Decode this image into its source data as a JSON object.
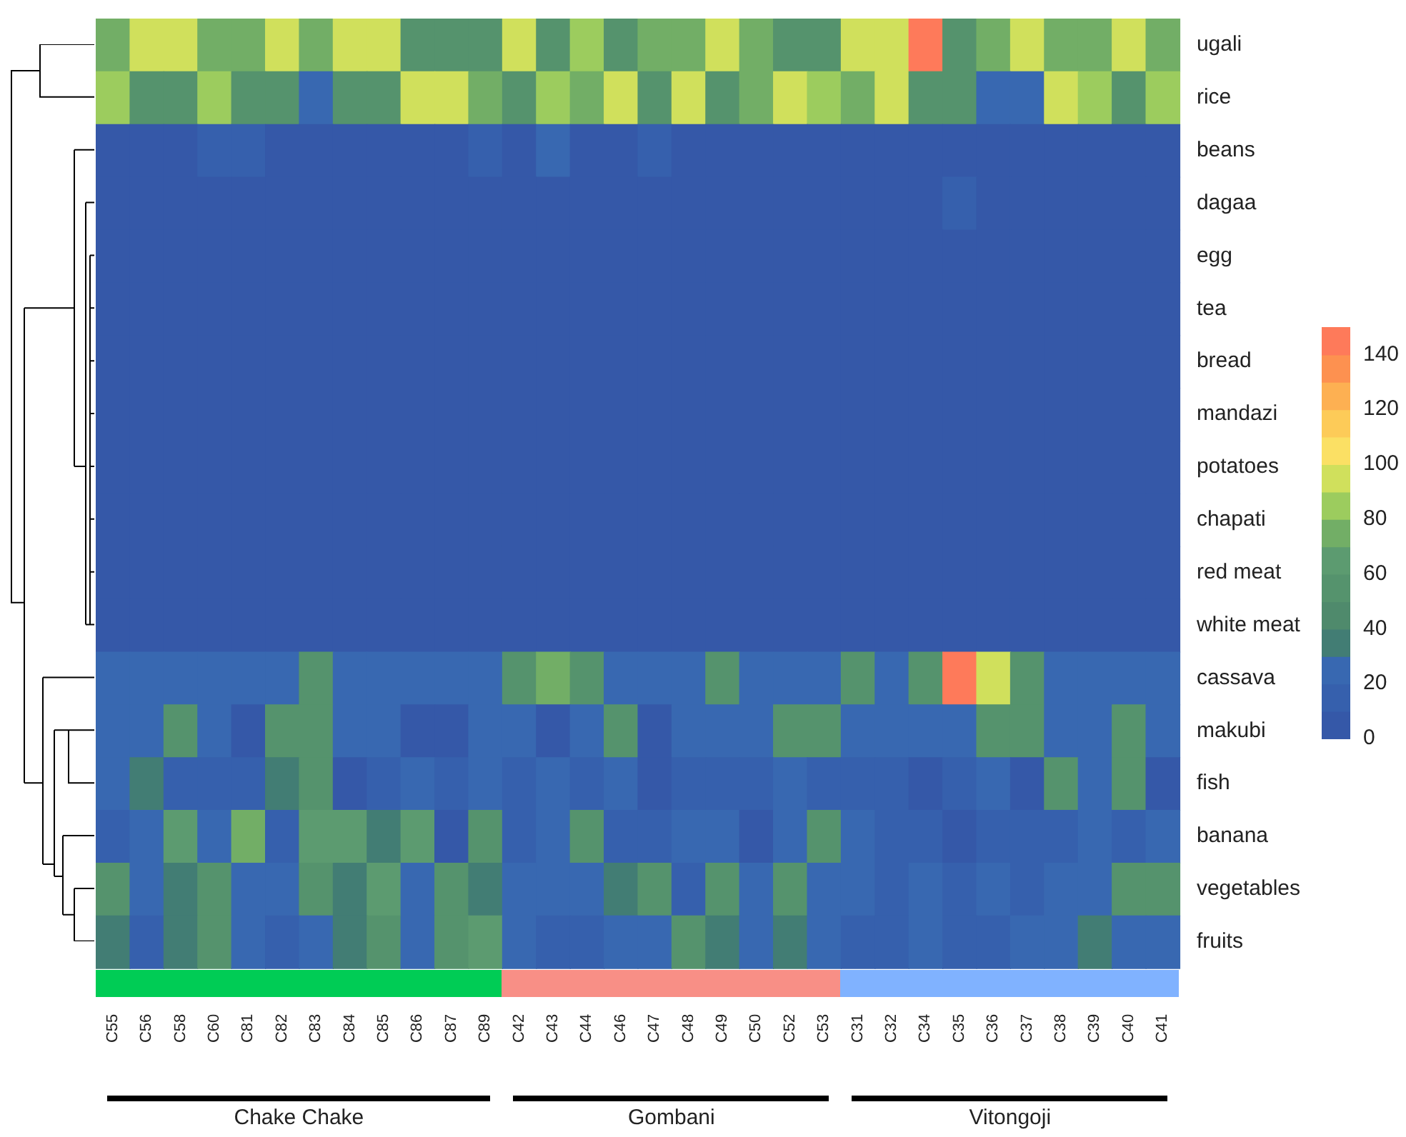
{
  "chart_data": {
    "type": "heatmap",
    "categories": [
      "C55",
      "C56",
      "C58",
      "C60",
      "C81",
      "C82",
      "C83",
      "C84",
      "C85",
      "C86",
      "C87",
      "C89",
      "C42",
      "C43",
      "C44",
      "C46",
      "C47",
      "C48",
      "C49",
      "C50",
      "C52",
      "C53",
      "C31",
      "C32",
      "C34",
      "C35",
      "C36",
      "C37",
      "C38",
      "C39",
      "C40",
      "C41"
    ],
    "y_categories": [
      "ugali",
      "rice",
      "beans",
      "dagaa",
      "egg",
      "tea",
      "bread",
      "mandazi",
      "potatoes",
      "chapati",
      "red meat",
      "white meat",
      "cassava",
      "makubi",
      "fish",
      "banana",
      "vegetables",
      "fruits"
    ],
    "cells": [
      [
        75,
        95,
        95,
        75,
        75,
        95,
        75,
        95,
        95,
        55,
        55,
        55,
        95,
        55,
        85,
        55,
        75,
        75,
        95,
        75,
        55,
        55,
        95,
        95,
        145,
        55,
        75,
        95,
        75,
        75,
        95,
        75
      ],
      [
        85,
        55,
        55,
        85,
        55,
        55,
        25,
        55,
        55,
        95,
        95,
        75,
        55,
        85,
        75,
        95,
        55,
        95,
        55,
        75,
        95,
        85,
        75,
        95,
        55,
        55,
        25,
        25,
        95,
        85,
        55,
        85
      ],
      [
        5,
        5,
        5,
        15,
        15,
        5,
        5,
        5,
        5,
        5,
        5,
        15,
        5,
        25,
        5,
        5,
        15,
        5,
        5,
        5,
        5,
        5,
        5,
        5,
        5,
        5,
        5,
        5,
        5,
        5,
        5,
        5
      ],
      [
        5,
        5,
        5,
        5,
        5,
        5,
        5,
        5,
        5,
        5,
        5,
        5,
        5,
        5,
        5,
        5,
        5,
        5,
        5,
        5,
        5,
        5,
        5,
        5,
        5,
        15,
        5,
        5,
        5,
        5,
        5,
        5
      ],
      [
        5,
        5,
        5,
        5,
        5,
        5,
        5,
        5,
        5,
        5,
        5,
        5,
        5,
        5,
        5,
        5,
        5,
        5,
        5,
        5,
        5,
        5,
        5,
        5,
        5,
        5,
        5,
        5,
        5,
        5,
        5,
        5
      ],
      [
        5,
        5,
        5,
        5,
        5,
        5,
        5,
        5,
        5,
        5,
        5,
        5,
        5,
        5,
        5,
        5,
        5,
        5,
        5,
        5,
        5,
        5,
        5,
        5,
        5,
        5,
        5,
        5,
        5,
        5,
        5,
        5
      ],
      [
        5,
        5,
        5,
        5,
        5,
        5,
        5,
        5,
        5,
        5,
        5,
        5,
        5,
        5,
        5,
        5,
        5,
        5,
        5,
        5,
        5,
        5,
        5,
        5,
        5,
        5,
        5,
        5,
        5,
        5,
        5,
        5
      ],
      [
        5,
        5,
        5,
        5,
        5,
        5,
        5,
        5,
        5,
        5,
        5,
        5,
        5,
        5,
        5,
        5,
        5,
        5,
        5,
        5,
        5,
        5,
        5,
        5,
        5,
        5,
        5,
        5,
        5,
        5,
        5,
        5
      ],
      [
        5,
        5,
        5,
        5,
        5,
        5,
        5,
        5,
        5,
        5,
        5,
        5,
        5,
        5,
        5,
        5,
        5,
        5,
        5,
        5,
        5,
        5,
        5,
        5,
        5,
        5,
        5,
        5,
        5,
        5,
        5,
        5
      ],
      [
        5,
        5,
        5,
        5,
        5,
        5,
        5,
        5,
        5,
        5,
        5,
        5,
        5,
        5,
        5,
        5,
        5,
        5,
        5,
        5,
        5,
        5,
        5,
        5,
        5,
        5,
        5,
        5,
        5,
        5,
        5,
        5
      ],
      [
        5,
        5,
        5,
        5,
        5,
        5,
        5,
        5,
        5,
        5,
        5,
        5,
        5,
        5,
        5,
        5,
        5,
        5,
        5,
        5,
        5,
        5,
        5,
        5,
        5,
        5,
        5,
        5,
        5,
        5,
        5,
        5
      ],
      [
        5,
        5,
        5,
        5,
        5,
        5,
        5,
        5,
        5,
        5,
        5,
        5,
        5,
        5,
        5,
        5,
        5,
        5,
        5,
        5,
        5,
        5,
        5,
        5,
        5,
        5,
        5,
        5,
        5,
        5,
        5,
        5
      ],
      [
        25,
        25,
        25,
        25,
        25,
        25,
        55,
        25,
        25,
        25,
        25,
        25,
        55,
        75,
        55,
        25,
        25,
        25,
        55,
        25,
        25,
        25,
        55,
        25,
        55,
        145,
        95,
        55,
        25,
        25,
        25,
        25
      ],
      [
        25,
        25,
        55,
        25,
        5,
        55,
        55,
        25,
        25,
        5,
        5,
        25,
        25,
        5,
        25,
        55,
        5,
        25,
        25,
        25,
        55,
        55,
        25,
        25,
        25,
        25,
        55,
        55,
        25,
        25,
        55,
        25
      ],
      [
        25,
        35,
        15,
        15,
        15,
        35,
        55,
        5,
        15,
        25,
        15,
        25,
        15,
        25,
        15,
        25,
        5,
        15,
        15,
        15,
        25,
        15,
        15,
        15,
        5,
        15,
        25,
        5,
        55,
        25,
        55,
        5
      ],
      [
        15,
        25,
        65,
        25,
        75,
        15,
        65,
        65,
        35,
        65,
        5,
        55,
        15,
        25,
        55,
        15,
        15,
        25,
        25,
        5,
        25,
        55,
        25,
        15,
        15,
        5,
        15,
        15,
        15,
        25,
        15,
        25
      ],
      [
        55,
        25,
        35,
        55,
        25,
        25,
        55,
        35,
        65,
        25,
        55,
        35,
        25,
        25,
        25,
        35,
        55,
        15,
        55,
        25,
        55,
        25,
        25,
        15,
        25,
        15,
        25,
        15,
        25,
        25,
        55,
        55
      ],
      [
        35,
        15,
        35,
        55,
        25,
        15,
        25,
        35,
        55,
        25,
        55,
        65,
        25,
        15,
        15,
        25,
        25,
        55,
        35,
        25,
        35,
        25,
        15,
        15,
        25,
        15,
        15,
        25,
        25,
        35,
        25,
        25
      ]
    ],
    "clim": [
      0,
      150
    ],
    "cticks": [
      0,
      20,
      40,
      60,
      80,
      100,
      120,
      140
    ],
    "annotations": [
      "Chake Chake",
      "Gombani",
      "Vitongoji"
    ]
  }
}
